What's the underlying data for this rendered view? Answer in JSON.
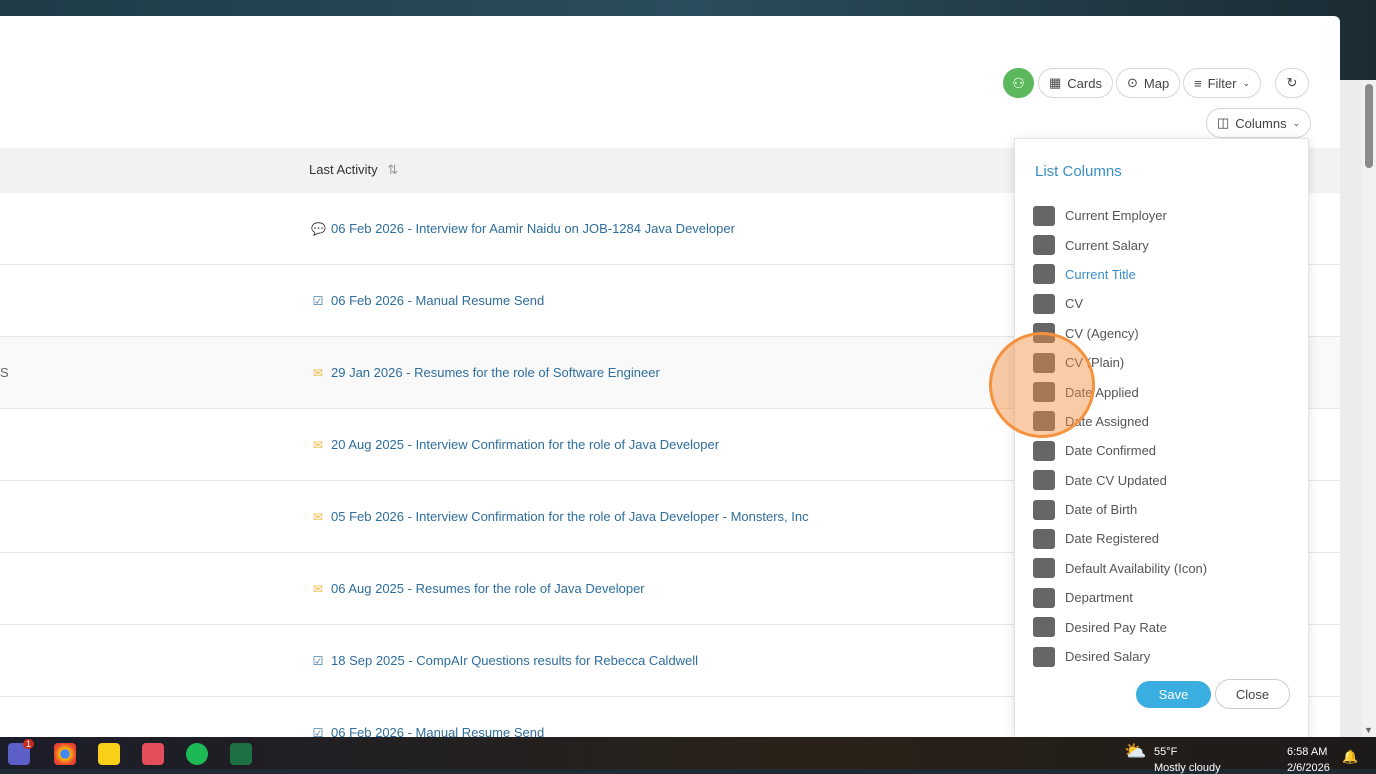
{
  "toolbar": {
    "cards": "Cards",
    "map": "Map",
    "filter": "Filter",
    "columns": "Columns"
  },
  "table": {
    "header": "Last Activity",
    "sort_icon": "⇅",
    "rows": [
      {
        "left": "",
        "icon": "chat",
        "text": "06 Feb 2026 - Interview for Aamir Naidu on JOB-1284 Java Developer"
      },
      {
        "left": "",
        "icon": "check",
        "text": "06 Feb 2026 - Manual Resume Send"
      },
      {
        "left": "S",
        "icon": "mail",
        "text": "29 Jan 2026 - Resumes for the role of Software Engineer"
      },
      {
        "left": "",
        "icon": "mail",
        "text": "20 Aug 2025 - Interview Confirmation for the role of Java Developer"
      },
      {
        "left": "",
        "icon": "mail",
        "text": "05 Feb 2026 - Interview Confirmation for the role of Java Developer - Monsters, Inc"
      },
      {
        "left": "",
        "icon": "mail",
        "text": "06 Aug 2025 - Resumes for the role of Java Developer"
      },
      {
        "left": "",
        "icon": "check",
        "text": "18 Sep 2025 - CompAIr Questions results for Rebecca Caldwell"
      },
      {
        "left": "",
        "icon": "check",
        "text": "06 Feb 2026 - Manual Resume Send"
      }
    ]
  },
  "panel": {
    "title": "List Columns",
    "items": [
      "Current Employer",
      "Current Salary",
      "Current Title",
      "CV",
      "CV (Agency)",
      "CV (Plain)",
      "Date Applied",
      "Date Assigned",
      "Date Confirmed",
      "Date CV Updated",
      "Date of Birth",
      "Date Registered",
      "Default Availability (Icon)",
      "Department",
      "Desired Pay Rate",
      "Desired Salary"
    ],
    "highlighted": "Current Title",
    "save": "Save",
    "close": "Close"
  },
  "taskbar": {
    "weather_temp": "55°F",
    "weather_desc": "Mostly cloudy",
    "time": "6:58 AM",
    "date": "2/6/2026",
    "teams_badge": "1"
  }
}
